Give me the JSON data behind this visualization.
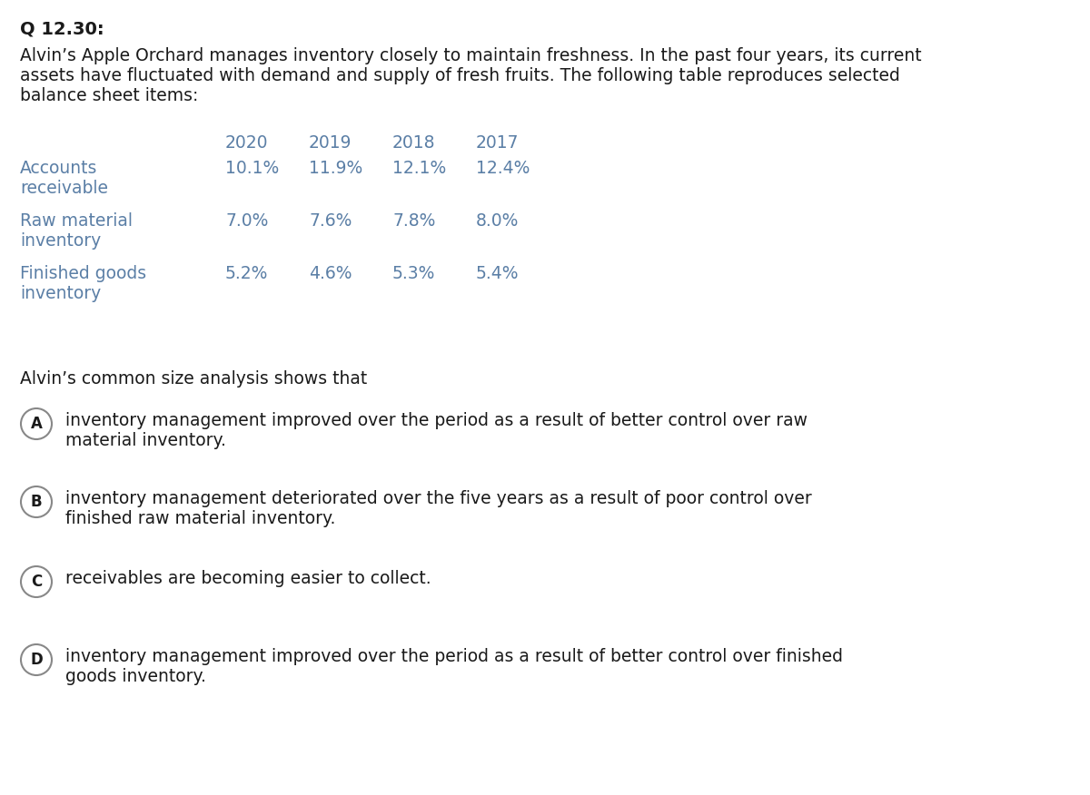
{
  "title": "Q 12.30:",
  "intro_line1": "Alvin’s Apple Orchard manages inventory closely to maintain freshness. In the past four years, its current",
  "intro_line2": "assets have fluctuated with demand and supply of fresh fruits. The following table reproduces selected",
  "intro_line3": "balance sheet items:",
  "table_headers": [
    "2020",
    "2019",
    "2018",
    "2017"
  ],
  "table_rows": [
    {
      "label1": "Accounts",
      "label2": "receivable",
      "vals": [
        "10.1%",
        "11.9%",
        "12.1%",
        "12.4%"
      ]
    },
    {
      "label1": "Raw material",
      "label2": "inventory",
      "vals": [
        "7.0%",
        "7.6%",
        "7.8%",
        "8.0%"
      ]
    },
    {
      "label1": "Finished goods",
      "label2": "inventory",
      "vals": [
        "5.2%",
        "4.6%",
        "5.3%",
        "5.4%"
      ]
    }
  ],
  "analysis_label": "Alvin’s common size analysis shows that",
  "options": [
    {
      "letter": "A",
      "text1": "inventory management improved over the period as a result of better control over raw",
      "text2": "material inventory."
    },
    {
      "letter": "B",
      "text1": "inventory management deteriorated over the five years as a result of poor control over",
      "text2": "finished raw material inventory."
    },
    {
      "letter": "C",
      "text1": "receivables are becoming easier to collect.",
      "text2": ""
    },
    {
      "letter": "D",
      "text1": "inventory management improved over the period as a result of better control over finished",
      "text2": "goods inventory."
    }
  ],
  "bg_color": "#ffffff",
  "text_color": "#1a1a1a",
  "table_label_color": "#5b7fa6",
  "table_val_color": "#5b7fa6",
  "circle_edge_color": "#888888",
  "title_fontsize": 14,
  "body_fontsize": 13.5,
  "table_fontsize": 13.5,
  "option_fontsize": 13.5,
  "small_fontsize": 13.5
}
